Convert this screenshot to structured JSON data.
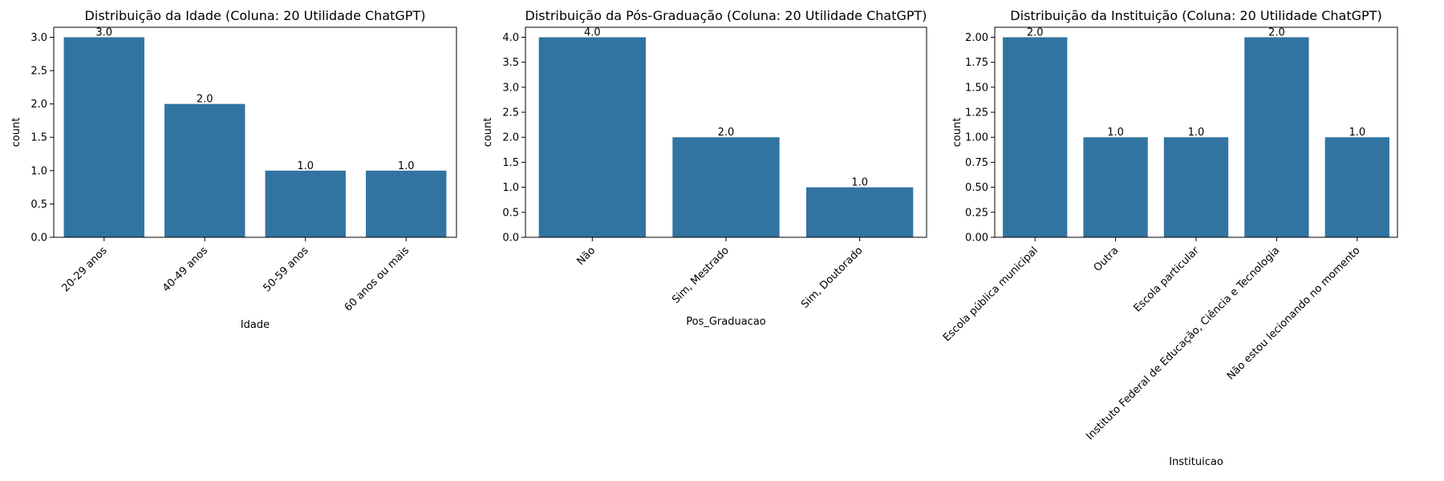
{
  "colors": {
    "bar": "#3274a1"
  },
  "chart_data": [
    {
      "type": "bar",
      "title": "Distribuição da Idade (Coluna: 20 Utilidade ChatGPT)",
      "xlabel": "Idade",
      "ylabel": "count",
      "categories": [
        "20-29 anos",
        "40-49 anos",
        "50-59 anos",
        "60 anos ou mais"
      ],
      "values": [
        3.0,
        2.0,
        1.0,
        1.0
      ],
      "data_labels": [
        "3.0",
        "2.0",
        "1.0",
        "1.0"
      ],
      "ylim": [
        0,
        3.15
      ],
      "yticks": [
        0,
        0.5,
        1.0,
        1.5,
        2.0,
        2.5,
        3.0
      ],
      "ytick_labels": [
        "0.0",
        "0.5",
        "1.0",
        "1.5",
        "2.0",
        "2.5",
        "3.0"
      ],
      "grid": false,
      "xtick_rotation": 45
    },
    {
      "type": "bar",
      "title": "Distribuição da Pós-Graduação (Coluna: 20 Utilidade ChatGPT)",
      "xlabel": "Pos_Graduacao",
      "ylabel": "count",
      "categories": [
        "Não",
        "Sim, Mestrado",
        "Sim, Doutorado"
      ],
      "values": [
        4.0,
        2.0,
        1.0
      ],
      "data_labels": [
        "4.0",
        "2.0",
        "1.0"
      ],
      "ylim": [
        0,
        4.2
      ],
      "yticks": [
        0,
        0.5,
        1.0,
        1.5,
        2.0,
        2.5,
        3.0,
        3.5,
        4.0
      ],
      "ytick_labels": [
        "0.0",
        "0.5",
        "1.0",
        "1.5",
        "2.0",
        "2.5",
        "3.0",
        "3.5",
        "4.0"
      ],
      "grid": false,
      "xtick_rotation": 45
    },
    {
      "type": "bar",
      "title": "Distribuição da Instituição (Coluna: 20 Utilidade ChatGPT)",
      "xlabel": "Instituicao",
      "ylabel": "count",
      "categories": [
        "Escola pública municipal",
        "Outra",
        "Escola particular",
        "Instituto Federal de Educação, Ciência e Tecnologia",
        "Não estou lecionando no momento"
      ],
      "values": [
        2.0,
        1.0,
        1.0,
        2.0,
        1.0
      ],
      "data_labels": [
        "2.0",
        "1.0",
        "1.0",
        "2.0",
        "1.0"
      ],
      "ylim": [
        0,
        2.1
      ],
      "yticks": [
        0,
        0.25,
        0.5,
        0.75,
        1.0,
        1.25,
        1.5,
        1.75,
        2.0
      ],
      "ytick_labels": [
        "0.00",
        "0.25",
        "0.50",
        "0.75",
        "1.00",
        "1.25",
        "1.50",
        "1.75",
        "2.00"
      ],
      "grid": false,
      "xtick_rotation": 45
    }
  ]
}
